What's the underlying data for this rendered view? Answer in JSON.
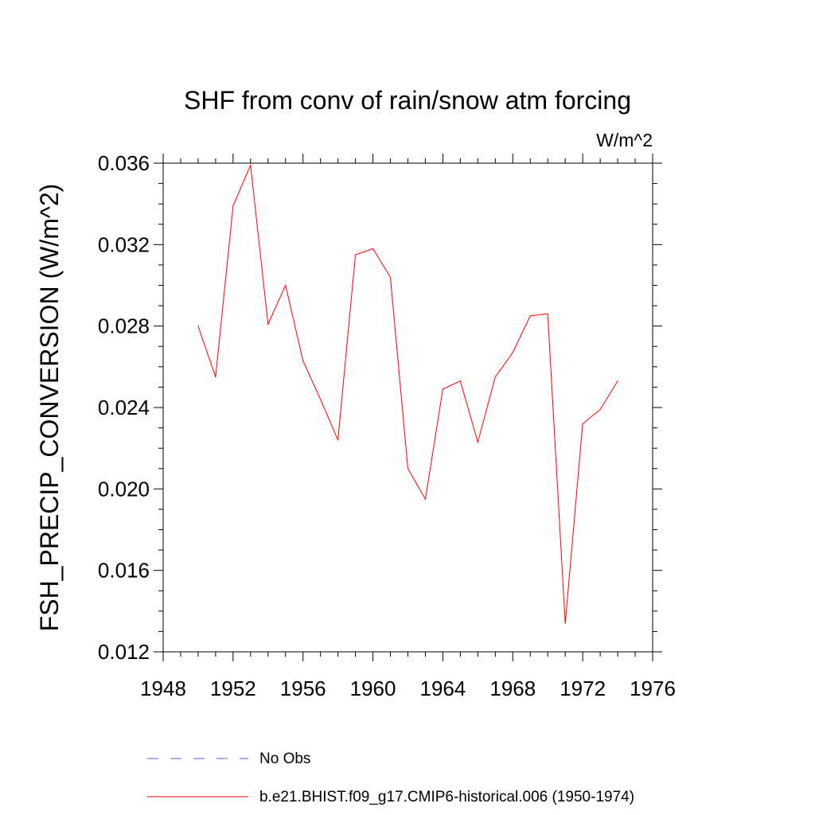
{
  "chart_data": {
    "type": "line",
    "title": "SHF from conv of rain/snow atm forcing",
    "units_label": "W/m^2",
    "ylabel": "FSH_PRECIP_CONVERSION  (W/m^2)",
    "xlabel": "",
    "xlim": [
      1948,
      1976
    ],
    "ylim": [
      0.012,
      0.036
    ],
    "x_ticks": [
      1948,
      1952,
      1956,
      1960,
      1964,
      1968,
      1972,
      1976
    ],
    "x_tick_labels": [
      "1948",
      "1952",
      "1956",
      "1960",
      "1964",
      "1968",
      "1972",
      "1976"
    ],
    "y_ticks": [
      0.012,
      0.016,
      0.02,
      0.024,
      0.028,
      0.032,
      0.036
    ],
    "y_tick_labels": [
      "0.012",
      "0.016",
      "0.020",
      "0.024",
      "0.028",
      "0.032",
      "0.036"
    ],
    "series": [
      {
        "name": "b.e21.BHIST.f09_g17.CMIP6-historical.006 (1950-1974)",
        "color": "#ff0000",
        "x": [
          1950,
          1951,
          1952,
          1953,
          1954,
          1955,
          1956,
          1957,
          1958,
          1959,
          1960,
          1961,
          1962,
          1963,
          1964,
          1965,
          1966,
          1967,
          1968,
          1969,
          1970,
          1971,
          1972,
          1973,
          1974
        ],
        "y": [
          0.028,
          0.0255,
          0.0339,
          0.0359,
          0.0281,
          0.03,
          0.0263,
          0.0244,
          0.0224,
          0.0315,
          0.0318,
          0.0304,
          0.021,
          0.0195,
          0.0249,
          0.0253,
          0.0223,
          0.0255,
          0.0267,
          0.0285,
          0.0286,
          0.0134,
          0.0232,
          0.0239,
          0.0253
        ]
      }
    ],
    "legend": [
      {
        "label": "No Obs",
        "color": "#6a5acd",
        "style": "dashed"
      },
      {
        "label": "b.e21.BHIST.f09_g17.CMIP6-historical.006 (1950-1974)",
        "color": "#ff0000",
        "style": "solid"
      }
    ],
    "legend_position": "bottom"
  }
}
